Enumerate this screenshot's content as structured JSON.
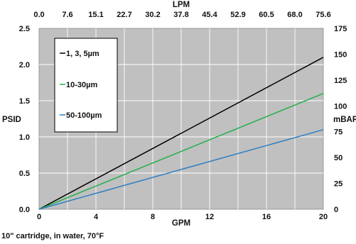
{
  "chart_data": {
    "type": "line",
    "x": [
      0,
      20
    ],
    "series": [
      {
        "name": "1, 3, 5µm",
        "values": [
          0,
          2.1
        ],
        "color": "#000000"
      },
      {
        "name": "10-30µm",
        "values": [
          0,
          1.6
        ],
        "color": "#22b04b"
      },
      {
        "name": "50-100µm",
        "values": [
          0,
          1.1
        ],
        "color": "#2e7ec4"
      }
    ],
    "xlabel": "GPM",
    "ylabel": "PSID",
    "xlim": [
      0,
      20
    ],
    "ylim": [
      0,
      2.5
    ],
    "x_ticks": [
      "0",
      "4",
      "8",
      "12",
      "16",
      "20"
    ],
    "x_tick_values": [
      0,
      4,
      8,
      12,
      16,
      20
    ],
    "y_ticks": [
      "0.0",
      "0.5",
      "1.0",
      "1.5",
      "2.0",
      "2.5"
    ],
    "y_tick_values": [
      0,
      0.5,
      1.0,
      1.5,
      2.0,
      2.5
    ],
    "top_axis": {
      "label": "LPM",
      "ticks": [
        "0.0",
        "7.6",
        "15.1",
        "22.7",
        "30.2",
        "37.8",
        "45.4",
        "52.9",
        "60.5",
        "68.0",
        "75.6"
      ]
    },
    "right_axis": {
      "label": "mBAR",
      "ticks": [
        "0",
        "25",
        "50",
        "75",
        "100",
        "125",
        "150",
        "175"
      ],
      "range": [
        0,
        175
      ]
    },
    "legend_position": "top-left",
    "plot_background": "#c0c0c0",
    "grid": true,
    "footnote": "10\" cartridge, in water, 70°F"
  }
}
